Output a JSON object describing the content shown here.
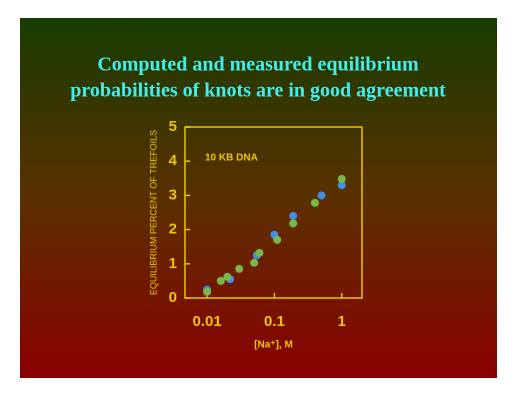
{
  "chart_data": {
    "type": "scatter",
    "title": [
      "Computed and measured equilibrium",
      "probabilities of knots are in good agreement"
    ],
    "annotation": "10 KB DNA",
    "x_label": "[Na⁺], M",
    "y_label": "EQUILIBRIUM PERCENT OF TREFOILS",
    "x_log": true,
    "xlim": [
      0.0047,
      2
    ],
    "xticks": [
      0.01,
      0.1,
      1
    ],
    "ylim": [
      0,
      5
    ],
    "yticks": [
      0,
      1,
      2,
      3,
      4,
      5
    ],
    "axis_color": "#e8c800",
    "series": [
      {
        "color": "#3f8fe6",
        "x": [
          0.01,
          0.022,
          0.055,
          0.1,
          0.19,
          0.5,
          1.0
        ],
        "values": [
          0.24,
          0.55,
          1.25,
          1.85,
          2.4,
          3.0,
          3.3
        ]
      },
      {
        "color": "#78b848",
        "x": [
          0.01,
          0.016,
          0.02,
          0.03,
          0.05,
          0.06,
          0.11,
          0.19,
          0.4,
          1.0
        ],
        "values": [
          0.18,
          0.5,
          0.62,
          0.85,
          1.03,
          1.32,
          1.7,
          2.18,
          2.78,
          3.48
        ]
      }
    ]
  }
}
